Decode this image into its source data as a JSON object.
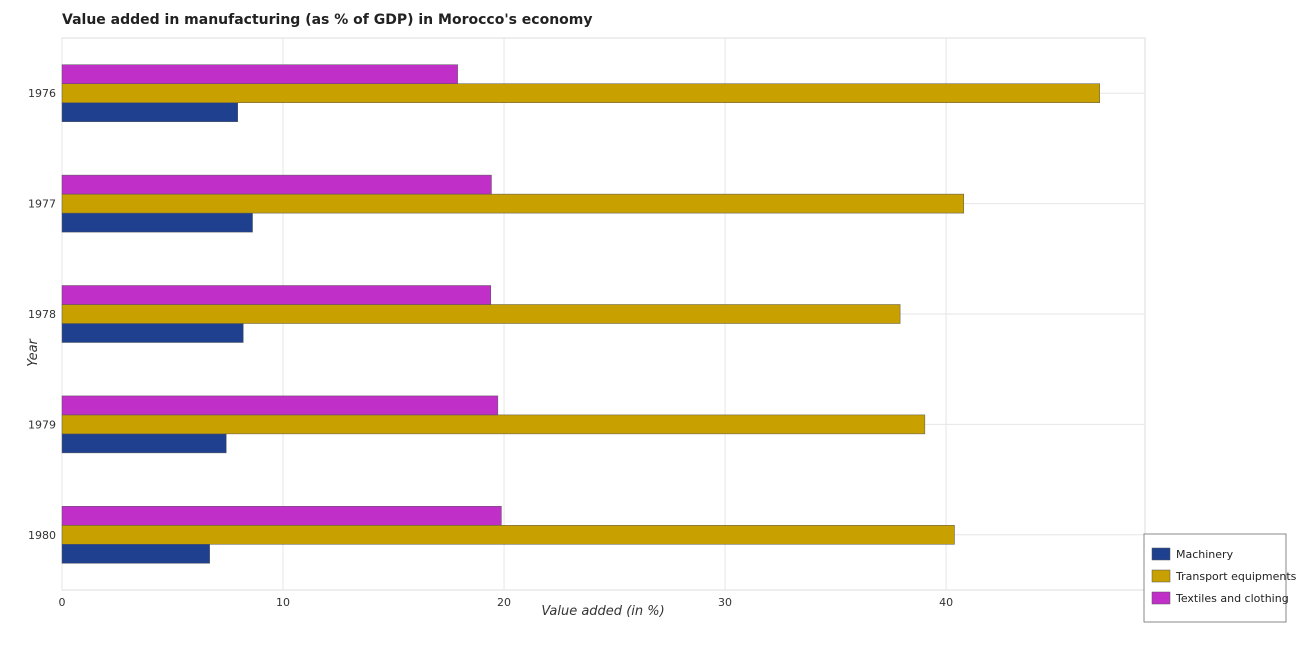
{
  "chart_data": {
    "type": "bar",
    "orientation": "horizontal",
    "title": "Value added in manufacturing (as % of GDP) in Morocco's economy",
    "xlabel": "Value added (in %)",
    "ylabel": "Year",
    "categories": [
      "1976",
      "1977",
      "1978",
      "1979",
      "1980"
    ],
    "xlim": [
      0,
      49
    ],
    "xticks": [
      0,
      10,
      20,
      30,
      40
    ],
    "grid": true,
    "legend_position": "bottom-right",
    "series": [
      {
        "name": "Machinery",
        "color": "#1f3f8f",
        "values": [
          7.95,
          8.62,
          8.2,
          7.43,
          6.68
        ]
      },
      {
        "name": "Transport equipments",
        "color": "#c8a000",
        "values": [
          46.95,
          40.8,
          37.92,
          39.04,
          40.38
        ]
      },
      {
        "name": "Textiles and clothing",
        "color": "#c030c8",
        "values": [
          17.9,
          19.43,
          19.4,
          19.72,
          19.88
        ]
      }
    ]
  }
}
